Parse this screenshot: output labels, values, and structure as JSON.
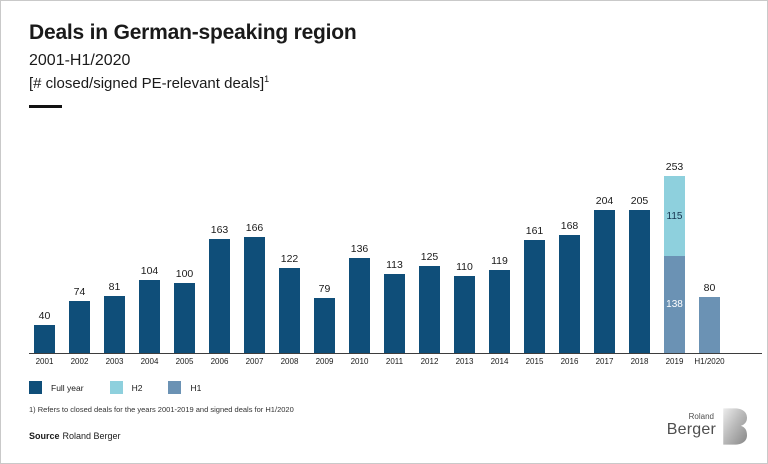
{
  "header": {
    "title": "Deals in German-speaking region",
    "subtitle": "2001-H1/2020",
    "measure": "[# closed/signed PE-relevant deals]",
    "measure_footnote_marker": "1"
  },
  "chart_data": {
    "type": "bar",
    "title": "Deals in German-speaking region 2001-H1/2020",
    "ylabel": "# closed/signed PE-relevant deals",
    "grid": false,
    "legend_position": "bottom-left",
    "categories": [
      "2001",
      "2002",
      "2003",
      "2004",
      "2005",
      "2006",
      "2007",
      "2008",
      "2009",
      "2010",
      "2011",
      "2012",
      "2013",
      "2014",
      "2015",
      "2016",
      "2017",
      "2018",
      "2019",
      "H1/2020"
    ],
    "series_colors": {
      "full_year": "#0f4e79",
      "h2": "#8ed0dd",
      "h1": "#6b92b4"
    },
    "segment_label_colors": {
      "h2": "#16344f",
      "h1": "#ffffff"
    },
    "bars": [
      {
        "category": "2001",
        "total_label": "40",
        "segments": [
          {
            "series": "full_year",
            "value": 40
          }
        ]
      },
      {
        "category": "2002",
        "total_label": "74",
        "segments": [
          {
            "series": "full_year",
            "value": 74
          }
        ]
      },
      {
        "category": "2003",
        "total_label": "81",
        "segments": [
          {
            "series": "full_year",
            "value": 81
          }
        ]
      },
      {
        "category": "2004",
        "total_label": "104",
        "segments": [
          {
            "series": "full_year",
            "value": 104
          }
        ]
      },
      {
        "category": "2005",
        "total_label": "100",
        "segments": [
          {
            "series": "full_year",
            "value": 100
          }
        ]
      },
      {
        "category": "2006",
        "total_label": "163",
        "segments": [
          {
            "series": "full_year",
            "value": 163
          }
        ]
      },
      {
        "category": "2007",
        "total_label": "166",
        "segments": [
          {
            "series": "full_year",
            "value": 166
          }
        ]
      },
      {
        "category": "2008",
        "total_label": "122",
        "segments": [
          {
            "series": "full_year",
            "value": 122
          }
        ]
      },
      {
        "category": "2009",
        "total_label": "79",
        "segments": [
          {
            "series": "full_year",
            "value": 79
          }
        ]
      },
      {
        "category": "2010",
        "total_label": "136",
        "segments": [
          {
            "series": "full_year",
            "value": 136
          }
        ]
      },
      {
        "category": "2011",
        "total_label": "113",
        "segments": [
          {
            "series": "full_year",
            "value": 113
          }
        ]
      },
      {
        "category": "2012",
        "total_label": "125",
        "segments": [
          {
            "series": "full_year",
            "value": 125
          }
        ]
      },
      {
        "category": "2013",
        "total_label": "110",
        "segments": [
          {
            "series": "full_year",
            "value": 110
          }
        ]
      },
      {
        "category": "2014",
        "total_label": "119",
        "segments": [
          {
            "series": "full_year",
            "value": 119
          }
        ]
      },
      {
        "category": "2015",
        "total_label": "161",
        "segments": [
          {
            "series": "full_year",
            "value": 161
          }
        ]
      },
      {
        "category": "2016",
        "total_label": "168",
        "segments": [
          {
            "series": "full_year",
            "value": 168
          }
        ]
      },
      {
        "category": "2017",
        "total_label": "204",
        "segments": [
          {
            "series": "full_year",
            "value": 204
          }
        ]
      },
      {
        "category": "2018",
        "total_label": "205",
        "segments": [
          {
            "series": "full_year",
            "value": 205
          }
        ]
      },
      {
        "category": "2019",
        "total_label": "253",
        "segments": [
          {
            "series": "h1",
            "value": 138,
            "label": "138"
          },
          {
            "series": "h2",
            "value": 115,
            "label": "115"
          }
        ]
      },
      {
        "category": "H1/2020",
        "total_label": "80",
        "segments": [
          {
            "series": "h1",
            "value": 80
          }
        ]
      }
    ],
    "legend": [
      {
        "key": "full_year",
        "label": "Full year"
      },
      {
        "key": "h2",
        "label": "H2"
      },
      {
        "key": "h1",
        "label": "H1"
      }
    ]
  },
  "footnote": "1) Refers to closed deals for the years 2001-2019 and signed deals for H1/2020",
  "source": {
    "label": "Source",
    "value": "Roland Berger"
  },
  "logo": {
    "top": "Roland",
    "bottom": "Berger"
  }
}
